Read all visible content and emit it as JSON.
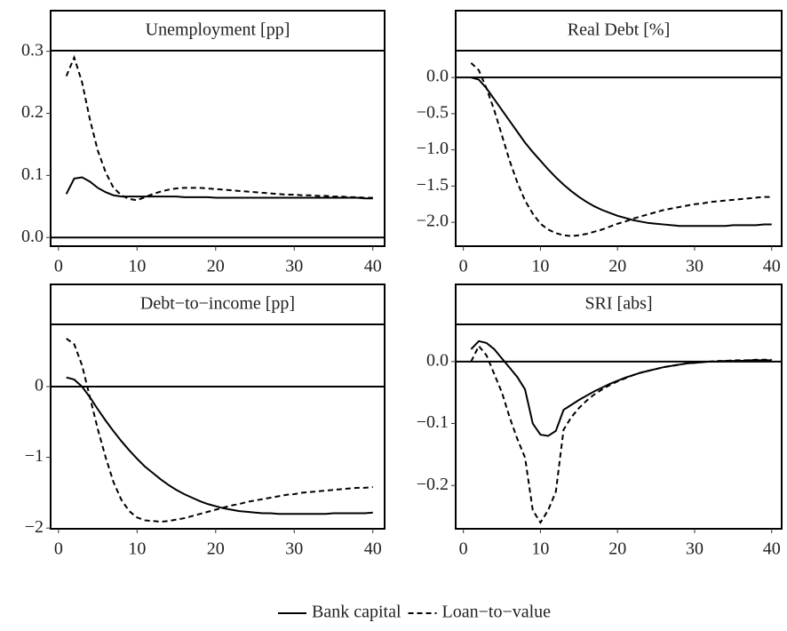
{
  "chart_data": [
    {
      "type": "line",
      "title": "Unemployment [pp]",
      "x": [
        1,
        2,
        3,
        4,
        5,
        6,
        7,
        8,
        9,
        10,
        11,
        12,
        13,
        14,
        15,
        16,
        17,
        18,
        19,
        20,
        21,
        22,
        23,
        24,
        25,
        26,
        27,
        28,
        29,
        30,
        31,
        32,
        33,
        34,
        35,
        36,
        37,
        38,
        39,
        40
      ],
      "series": [
        {
          "name": "Bank capital",
          "color": "#000000",
          "dash": "solid",
          "values": [
            0.07,
            0.095,
            0.097,
            0.09,
            0.08,
            0.073,
            0.068,
            0.066,
            0.066,
            0.066,
            0.066,
            0.066,
            0.066,
            0.066,
            0.066,
            0.065,
            0.065,
            0.065,
            0.065,
            0.064,
            0.064,
            0.064,
            0.064,
            0.064,
            0.064,
            0.064,
            0.064,
            0.064,
            0.064,
            0.064,
            0.064,
            0.064,
            0.064,
            0.064,
            0.064,
            0.064,
            0.064,
            0.064,
            0.063,
            0.063
          ]
        },
        {
          "name": "Loan−to−value",
          "color": "#000000",
          "dash": "dashed",
          "values": [
            0.26,
            0.29,
            0.25,
            0.19,
            0.14,
            0.105,
            0.08,
            0.068,
            0.062,
            0.06,
            0.065,
            0.07,
            0.074,
            0.077,
            0.079,
            0.08,
            0.08,
            0.08,
            0.079,
            0.078,
            0.077,
            0.076,
            0.075,
            0.074,
            0.073,
            0.072,
            0.071,
            0.07,
            0.069,
            0.069,
            0.068,
            0.068,
            0.067,
            0.067,
            0.066,
            0.066,
            0.065,
            0.065,
            0.064,
            0.064
          ]
        }
      ],
      "hline": 0,
      "xlim": [
        -1,
        41.5
      ],
      "xticks": [
        0,
        10,
        20,
        30,
        40
      ],
      "ylim": [
        -0.014,
        0.301
      ],
      "yticks": [
        {
          "value": 0,
          "label": "0.0"
        },
        0.1,
        0.2,
        0.3
      ]
    },
    {
      "type": "line",
      "title": "Real Debt [%]",
      "x": [
        1,
        2,
        3,
        4,
        5,
        6,
        7,
        8,
        9,
        10,
        11,
        12,
        13,
        14,
        15,
        16,
        17,
        18,
        19,
        20,
        21,
        22,
        23,
        24,
        25,
        26,
        27,
        28,
        29,
        30,
        31,
        32,
        33,
        34,
        35,
        36,
        37,
        38,
        39,
        40
      ],
      "series": [
        {
          "color": "#000000",
          "dash": "solid",
          "values": [
            0.0,
            -0.03,
            -0.15,
            -0.3,
            -0.45,
            -0.6,
            -0.75,
            -0.9,
            -1.03,
            -1.15,
            -1.27,
            -1.38,
            -1.48,
            -1.57,
            -1.65,
            -1.72,
            -1.78,
            -1.83,
            -1.87,
            -1.91,
            -1.94,
            -1.97,
            -1.99,
            -2.01,
            -2.02,
            -2.03,
            -2.04,
            -2.05,
            -2.05,
            -2.05,
            -2.05,
            -2.05,
            -2.05,
            -2.05,
            -2.04,
            -2.04,
            -2.04,
            -2.04,
            -2.03,
            -2.03
          ]
        },
        {
          "color": "#000000",
          "dash": "dashed",
          "values": [
            0.2,
            0.1,
            -0.15,
            -0.45,
            -0.8,
            -1.15,
            -1.45,
            -1.7,
            -1.88,
            -2.02,
            -2.1,
            -2.15,
            -2.18,
            -2.19,
            -2.18,
            -2.16,
            -2.13,
            -2.1,
            -2.06,
            -2.02,
            -1.99,
            -1.95,
            -1.92,
            -1.89,
            -1.86,
            -1.83,
            -1.81,
            -1.79,
            -1.77,
            -1.75,
            -1.74,
            -1.72,
            -1.71,
            -1.7,
            -1.69,
            -1.68,
            -1.67,
            -1.66,
            -1.65,
            -1.65
          ]
        }
      ],
      "hline": 0,
      "xlim": [
        -1,
        41.3
      ],
      "xticks": [
        0,
        10,
        20,
        30,
        40
      ],
      "ylim": [
        -2.33,
        0.37
      ],
      "yticks": [
        {
          "value": 0,
          "label": "0.0"
        },
        {
          "value": -0.5,
          "label": "−0.5"
        },
        {
          "value": -1,
          "label": "−1.0"
        },
        {
          "value": -1.5,
          "label": "−1.5"
        },
        {
          "value": -2,
          "label": "−2.0"
        }
      ]
    },
    {
      "type": "line",
      "title": "Debt−to−income [pp]",
      "x": [
        1,
        2,
        3,
        4,
        5,
        6,
        7,
        8,
        9,
        10,
        11,
        12,
        13,
        14,
        15,
        16,
        17,
        18,
        19,
        20,
        21,
        22,
        23,
        24,
        25,
        26,
        27,
        28,
        29,
        30,
        31,
        32,
        33,
        34,
        35,
        36,
        37,
        38,
        39,
        40
      ],
      "series": [
        {
          "color": "#000000",
          "dash": "solid",
          "values": [
            0.13,
            0.1,
            0.0,
            -0.15,
            -0.32,
            -0.48,
            -0.63,
            -0.77,
            -0.9,
            -1.02,
            -1.13,
            -1.22,
            -1.31,
            -1.39,
            -1.46,
            -1.52,
            -1.57,
            -1.62,
            -1.66,
            -1.69,
            -1.72,
            -1.74,
            -1.76,
            -1.77,
            -1.78,
            -1.79,
            -1.79,
            -1.8,
            -1.8,
            -1.8,
            -1.8,
            -1.8,
            -1.8,
            -1.8,
            -1.79,
            -1.79,
            -1.79,
            -1.79,
            -1.79,
            -1.78
          ]
        },
        {
          "color": "#000000",
          "dash": "dashed",
          "values": [
            0.68,
            0.6,
            0.3,
            -0.15,
            -0.6,
            -1.0,
            -1.35,
            -1.6,
            -1.76,
            -1.85,
            -1.89,
            -1.9,
            -1.91,
            -1.9,
            -1.88,
            -1.86,
            -1.83,
            -1.8,
            -1.77,
            -1.74,
            -1.71,
            -1.68,
            -1.66,
            -1.63,
            -1.61,
            -1.59,
            -1.57,
            -1.55,
            -1.53,
            -1.52,
            -1.5,
            -1.49,
            -1.48,
            -1.47,
            -1.46,
            -1.45,
            -1.44,
            -1.43,
            -1.43,
            -1.42
          ]
        }
      ],
      "hline": 0,
      "xlim": [
        -1,
        41.5
      ],
      "xticks": [
        0,
        10,
        20,
        30,
        40
      ],
      "ylim": [
        -2.01,
        0.88
      ],
      "yticks": [
        0,
        {
          "value": -1,
          "label": "−1"
        },
        {
          "value": -2,
          "label": "−2"
        }
      ]
    },
    {
      "type": "line",
      "title": "SRI [abs]",
      "x": [
        1,
        2,
        3,
        4,
        5,
        6,
        7,
        8,
        9,
        10,
        11,
        12,
        13,
        14,
        15,
        16,
        17,
        18,
        19,
        20,
        21,
        22,
        23,
        24,
        25,
        26,
        27,
        28,
        29,
        30,
        31,
        32,
        33,
        34,
        35,
        36,
        37,
        38,
        39,
        40
      ],
      "series": [
        {
          "color": "#000000",
          "dash": "solid",
          "values": [
            0.02,
            0.033,
            0.03,
            0.02,
            0.005,
            -0.01,
            -0.025,
            -0.045,
            -0.1,
            -0.118,
            -0.12,
            -0.112,
            -0.078,
            -0.07,
            -0.062,
            -0.055,
            -0.048,
            -0.042,
            -0.036,
            -0.031,
            -0.026,
            -0.022,
            -0.018,
            -0.015,
            -0.012,
            -0.009,
            -0.007,
            -0.005,
            -0.003,
            -0.002,
            -0.001,
            0,
            0,
            0.001,
            0.001,
            0.001,
            0.002,
            0.002,
            0.002,
            0.002
          ]
        },
        {
          "color": "#000000",
          "dash": "dashed",
          "values": [
            0.0,
            0.025,
            0.01,
            -0.02,
            -0.05,
            -0.09,
            -0.125,
            -0.155,
            -0.24,
            -0.26,
            -0.24,
            -0.21,
            -0.11,
            -0.09,
            -0.075,
            -0.063,
            -0.053,
            -0.045,
            -0.038,
            -0.032,
            -0.027,
            -0.022,
            -0.018,
            -0.015,
            -0.012,
            -0.009,
            -0.007,
            -0.005,
            -0.003,
            -0.002,
            -0.001,
            0,
            0.001,
            0.001,
            0.002,
            0.002,
            0.002,
            0.003,
            0.003,
            0.003
          ]
        }
      ],
      "hline": 0,
      "xlim": [
        -1,
        41.3
      ],
      "xticks": [
        0,
        10,
        20,
        30,
        40
      ],
      "ylim": [
        -0.27,
        0.06
      ],
      "yticks": [
        {
          "value": 0,
          "label": "0.0"
        },
        {
          "value": -0.1,
          "label": "−0.1"
        },
        {
          "value": -0.2,
          "label": "−0.2"
        }
      ]
    }
  ]
}
